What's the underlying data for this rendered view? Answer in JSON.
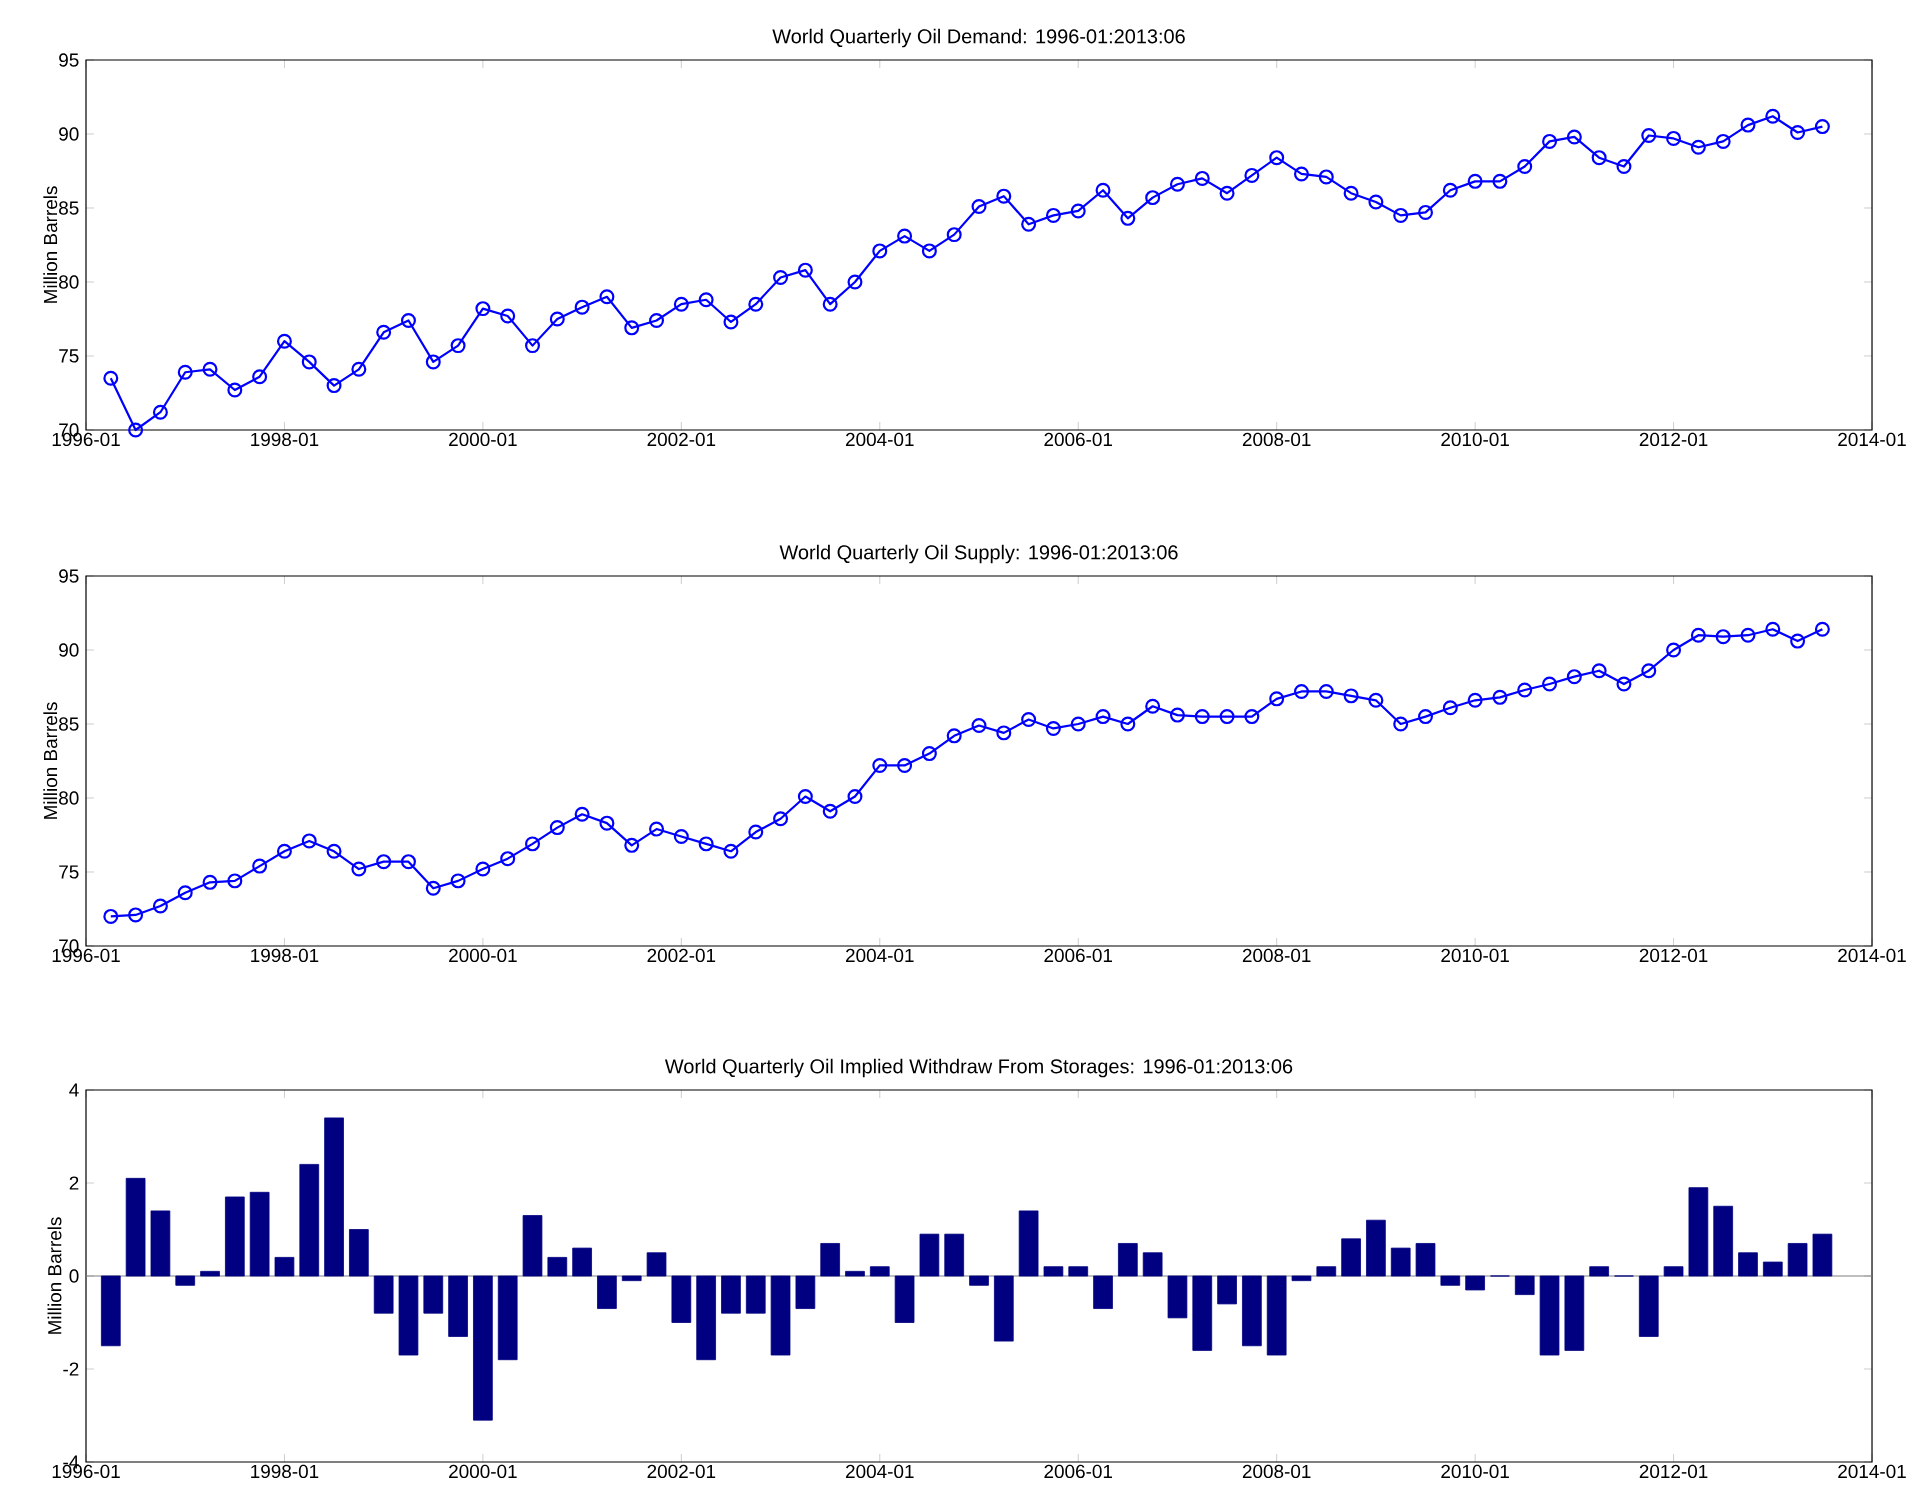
{
  "chart_data": [
    {
      "type": "line",
      "title": "World Quarterly Oil Demand: 1996-01:2013:06",
      "ylabel": "Million Barrels",
      "color": "#0000ff",
      "marker": "circle",
      "line_style": "solid",
      "x": [
        "1996-04",
        "1996-07",
        "1996-10",
        "1997-01",
        "1997-04",
        "1997-07",
        "1997-10",
        "1998-01",
        "1998-04",
        "1998-07",
        "1998-10",
        "1999-01",
        "1999-04",
        "1999-07",
        "1999-10",
        "2000-01",
        "2000-04",
        "2000-07",
        "2000-10",
        "2001-01",
        "2001-04",
        "2001-07",
        "2001-10",
        "2002-01",
        "2002-04",
        "2002-07",
        "2002-10",
        "2003-01",
        "2003-04",
        "2003-07",
        "2003-10",
        "2004-01",
        "2004-04",
        "2004-07",
        "2004-10",
        "2005-01",
        "2005-04",
        "2005-07",
        "2005-10",
        "2006-01",
        "2006-04",
        "2006-07",
        "2006-10",
        "2007-01",
        "2007-04",
        "2007-07",
        "2007-10",
        "2008-01",
        "2008-04",
        "2008-07",
        "2008-10",
        "2009-01",
        "2009-04",
        "2009-07",
        "2009-10",
        "2010-01",
        "2010-04",
        "2010-07",
        "2010-10",
        "2011-01",
        "2011-04",
        "2011-07",
        "2011-10",
        "2012-01",
        "2012-04",
        "2012-07",
        "2012-10",
        "2013-01",
        "2013-04",
        "2013-07"
      ],
      "values": [
        73.5,
        70.0,
        71.2,
        73.9,
        74.1,
        72.7,
        73.6,
        76.0,
        74.6,
        73.0,
        74.1,
        76.6,
        77.4,
        74.6,
        75.7,
        78.2,
        77.7,
        75.7,
        77.5,
        78.3,
        79.0,
        76.9,
        77.4,
        78.5,
        78.8,
        77.3,
        78.5,
        80.3,
        80.8,
        78.5,
        80.0,
        82.1,
        83.1,
        82.1,
        83.2,
        85.1,
        85.8,
        83.9,
        84.5,
        84.8,
        86.2,
        84.3,
        85.7,
        86.6,
        87.0,
        86.0,
        87.2,
        88.4,
        87.3,
        87.1,
        86.0,
        85.4,
        84.5,
        84.7,
        86.2,
        86.8,
        86.8,
        87.8,
        89.5,
        89.8,
        88.4,
        87.8,
        89.9,
        89.7,
        89.1,
        89.5,
        90.6,
        91.2,
        90.1,
        90.5
      ],
      "xlim": [
        "1996-01",
        "2014-01"
      ],
      "xticks": [
        "1996-01",
        "1998-01",
        "2000-01",
        "2002-01",
        "2004-01",
        "2006-01",
        "2008-01",
        "2010-01",
        "2012-01",
        "2014-01"
      ],
      "ylim": [
        70,
        95
      ],
      "yticks": [
        70,
        75,
        80,
        85,
        90,
        95
      ]
    },
    {
      "type": "line",
      "title": "World Quarterly Oil Supply: 1996-01:2013:06",
      "ylabel": "Million Barrels",
      "color": "#0000ff",
      "marker": "circle",
      "line_style": "solid",
      "x": [
        "1996-04",
        "1996-07",
        "1996-10",
        "1997-01",
        "1997-04",
        "1997-07",
        "1997-10",
        "1998-01",
        "1998-04",
        "1998-07",
        "1998-10",
        "1999-01",
        "1999-04",
        "1999-07",
        "1999-10",
        "2000-01",
        "2000-04",
        "2000-07",
        "2000-10",
        "2001-01",
        "2001-04",
        "2001-07",
        "2001-10",
        "2002-01",
        "2002-04",
        "2002-07",
        "2002-10",
        "2003-01",
        "2003-04",
        "2003-07",
        "2003-10",
        "2004-01",
        "2004-04",
        "2004-07",
        "2004-10",
        "2005-01",
        "2005-04",
        "2005-07",
        "2005-10",
        "2006-01",
        "2006-04",
        "2006-07",
        "2006-10",
        "2007-01",
        "2007-04",
        "2007-07",
        "2007-10",
        "2008-01",
        "2008-04",
        "2008-07",
        "2008-10",
        "2009-01",
        "2009-04",
        "2009-07",
        "2009-10",
        "2010-01",
        "2010-04",
        "2010-07",
        "2010-10",
        "2011-01",
        "2011-04",
        "2011-07",
        "2011-10",
        "2012-01",
        "2012-04",
        "2012-07",
        "2012-10",
        "2013-01",
        "2013-04",
        "2013-07"
      ],
      "values": [
        72.0,
        72.1,
        72.7,
        73.6,
        74.3,
        74.4,
        75.4,
        76.4,
        77.1,
        76.4,
        75.2,
        75.7,
        75.7,
        73.9,
        74.4,
        75.2,
        75.9,
        76.9,
        78.0,
        78.9,
        78.3,
        76.8,
        77.9,
        77.4,
        76.9,
        76.4,
        77.7,
        78.6,
        80.1,
        79.1,
        80.1,
        82.2,
        82.2,
        83.0,
        84.2,
        84.9,
        84.4,
        85.3,
        84.7,
        85.0,
        85.5,
        85.0,
        86.2,
        85.6,
        85.5,
        85.5,
        85.5,
        86.7,
        87.2,
        87.2,
        86.9,
        86.6,
        85.0,
        85.5,
        86.1,
        86.6,
        86.8,
        87.3,
        87.7,
        88.2,
        88.6,
        87.7,
        88.6,
        90.0,
        91.0,
        90.9,
        91.0,
        91.4,
        90.6,
        91.4
      ],
      "xlim": [
        "1996-01",
        "2014-01"
      ],
      "xticks": [
        "1996-01",
        "1998-01",
        "2000-01",
        "2002-01",
        "2004-01",
        "2006-01",
        "2008-01",
        "2010-01",
        "2012-01",
        "2014-01"
      ],
      "ylim": [
        70,
        95
      ],
      "yticks": [
        70,
        75,
        80,
        85,
        90,
        95
      ]
    },
    {
      "type": "bar",
      "title": "World Quarterly Oil Implied Withdraw From Storages: 1996-01:2013:06",
      "ylabel": "Million Barrels",
      "color": "#000080",
      "x": [
        "1996-04",
        "1996-07",
        "1996-10",
        "1997-01",
        "1997-04",
        "1997-07",
        "1997-10",
        "1998-01",
        "1998-04",
        "1998-07",
        "1998-10",
        "1999-01",
        "1999-04",
        "1999-07",
        "1999-10",
        "2000-01",
        "2000-04",
        "2000-07",
        "2000-10",
        "2001-01",
        "2001-04",
        "2001-07",
        "2001-10",
        "2002-01",
        "2002-04",
        "2002-07",
        "2002-10",
        "2003-01",
        "2003-04",
        "2003-07",
        "2003-10",
        "2004-01",
        "2004-04",
        "2004-07",
        "2004-10",
        "2005-01",
        "2005-04",
        "2005-07",
        "2005-10",
        "2006-01",
        "2006-04",
        "2006-07",
        "2006-10",
        "2007-01",
        "2007-04",
        "2007-07",
        "2007-10",
        "2008-01",
        "2008-04",
        "2008-07",
        "2008-10",
        "2009-01",
        "2009-04",
        "2009-07",
        "2009-10",
        "2010-01",
        "2010-04",
        "2010-07",
        "2010-10",
        "2011-01",
        "2011-04",
        "2011-07",
        "2011-10",
        "2012-01",
        "2012-04",
        "2012-07",
        "2012-10",
        "2013-01",
        "2013-04",
        "2013-07"
      ],
      "values": [
        -1.5,
        2.1,
        1.4,
        -0.2,
        0.1,
        1.7,
        1.8,
        0.4,
        2.4,
        3.4,
        1.0,
        -0.8,
        -1.7,
        -0.8,
        -1.3,
        -3.1,
        -1.8,
        1.3,
        0.4,
        0.6,
        -0.7,
        -0.1,
        0.5,
        -1.0,
        -1.8,
        -0.8,
        -0.8,
        -1.7,
        -0.7,
        0.7,
        0.1,
        0.2,
        -1.0,
        0.9,
        0.9,
        -0.2,
        -1.4,
        1.4,
        0.2,
        0.2,
        -0.7,
        0.7,
        0.5,
        -0.9,
        -1.6,
        -0.6,
        -1.5,
        -1.7,
        -0.1,
        0.2,
        0.8,
        1.2,
        0.6,
        0.7,
        -0.2,
        -0.3,
        0.0,
        -0.4,
        -1.7,
        -1.6,
        0.2,
        0.0,
        -1.3,
        0.2,
        1.9,
        1.5,
        0.5,
        0.3,
        0.7,
        0.9
      ],
      "xlim": [
        "1996-01",
        "2014-01"
      ],
      "xticks": [
        "1996-01",
        "1998-01",
        "2000-01",
        "2002-01",
        "2004-01",
        "2006-01",
        "2008-01",
        "2010-01",
        "2012-01",
        "2014-01"
      ],
      "ylim": [
        -4,
        4
      ],
      "yticks": [
        -4,
        -2,
        0,
        2,
        4
      ]
    }
  ]
}
